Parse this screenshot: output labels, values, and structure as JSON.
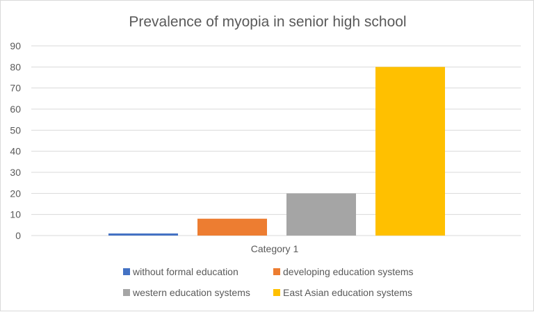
{
  "chart_data": {
    "type": "bar",
    "title": "Prevalence of myopia in senior high school",
    "categories": [
      "Category 1"
    ],
    "series": [
      {
        "name": "without formal education",
        "values": [
          1
        ],
        "color": "#4472C4"
      },
      {
        "name": "developing education systems",
        "values": [
          8
        ],
        "color": "#ED7D31"
      },
      {
        "name": "western education systems",
        "values": [
          20
        ],
        "color": "#A5A5A5"
      },
      {
        "name": "East Asian education systems",
        "values": [
          80
        ],
        "color": "#FFC000"
      }
    ],
    "ylim": [
      0,
      90
    ],
    "yticks": [
      "0",
      "10",
      "20",
      "30",
      "40",
      "50",
      "60",
      "70",
      "80",
      "90"
    ],
    "xlabel": "",
    "ylabel": "",
    "grid": true,
    "legend_position": "bottom"
  }
}
